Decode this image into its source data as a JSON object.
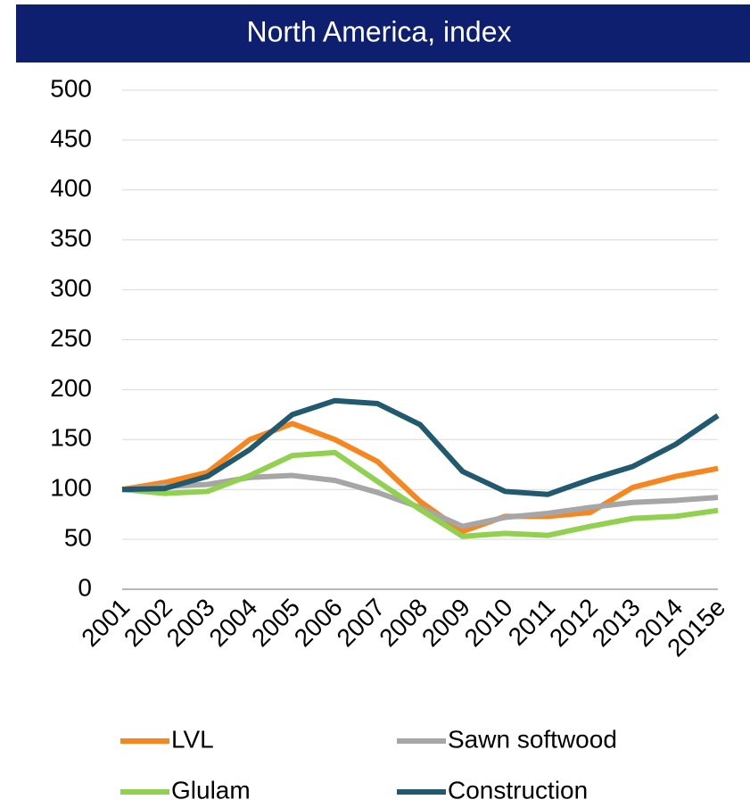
{
  "chart_data": {
    "type": "line",
    "title": "North America, index",
    "categories": [
      "2001",
      "2002",
      "2003",
      "2004",
      "2005",
      "2006",
      "2007",
      "2008",
      "2009",
      "2010",
      "2011",
      "2012",
      "2013",
      "2014",
      "2015e"
    ],
    "series": [
      {
        "name": "LVL",
        "color": "#f7861e",
        "values": [
          100,
          107,
          117,
          150,
          166,
          150,
          128,
          88,
          58,
          73,
          73,
          77,
          102,
          113,
          121
        ]
      },
      {
        "name": "Sawn softwood",
        "color": "#a6a6a6",
        "values": [
          100,
          103,
          105,
          112,
          114,
          109,
          97,
          82,
          63,
          72,
          76,
          82,
          87,
          89,
          92
        ]
      },
      {
        "name": "Glulam",
        "color": "#92d050",
        "values": [
          100,
          96,
          98,
          114,
          134,
          137,
          108,
          80,
          53,
          56,
          54,
          63,
          71,
          73,
          79
        ]
      },
      {
        "name": "Construction",
        "color": "#215a6e",
        "values": [
          100,
          101,
          113,
          140,
          175,
          189,
          186,
          165,
          118,
          98,
          95,
          110,
          123,
          145,
          174
        ]
      }
    ],
    "ylim": [
      0,
      500
    ],
    "yticks": [
      0,
      50,
      100,
      150,
      200,
      250,
      300,
      350,
      400,
      450,
      500
    ],
    "grid": true
  }
}
